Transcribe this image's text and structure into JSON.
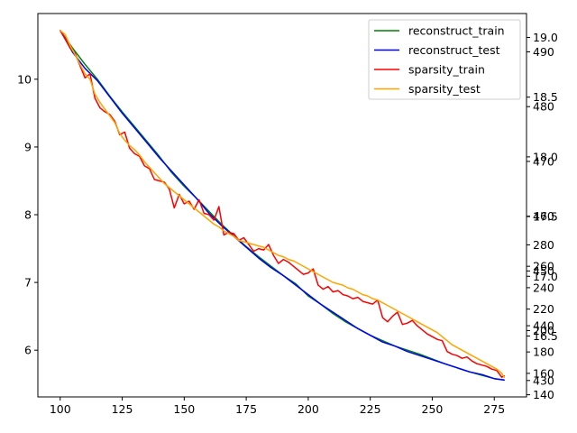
{
  "chart_data": {
    "type": "line",
    "title": "",
    "xlabel": "",
    "ylabel": "",
    "xlim": [
      91,
      288
    ],
    "ylim": [
      5.31,
      10.97
    ],
    "grid": false,
    "legend_position": "top-right",
    "xticks": [
      100,
      125,
      150,
      175,
      200,
      225,
      250,
      275
    ],
    "yticks": [
      6,
      7,
      8,
      9,
      10
    ],
    "right_axes": [
      {
        "name": "axis-a",
        "lim": [
          138.0,
          496.0
        ],
        "ticks": [
          140,
          160,
          180,
          200,
          220,
          240,
          260,
          280
        ]
      },
      {
        "name": "axis-b",
        "lim": [
          15.99,
          19.2
        ],
        "ticks": [
          16.5,
          17.0,
          17.5,
          18.0,
          18.5,
          19.0
        ]
      },
      {
        "name": "axis-c",
        "lim": [
          427.0,
          497.0
        ],
        "ticks": [
          430,
          440,
          450,
          460,
          470,
          480,
          490
        ]
      }
    ],
    "series": [
      {
        "name": "reconstruct_train",
        "color": "#008000",
        "x": [
          100,
          105,
          110,
          115,
          120,
          125,
          130,
          135,
          140,
          145,
          150,
          155,
          160,
          165,
          170,
          175,
          180,
          185,
          190,
          195,
          200,
          205,
          210,
          215,
          220,
          225,
          230,
          235,
          240,
          245,
          250,
          255,
          260,
          265,
          270,
          275,
          279
        ],
        "y": [
          10.72,
          10.46,
          10.22,
          10.0,
          9.75,
          9.52,
          9.3,
          9.08,
          8.86,
          8.62,
          8.42,
          8.24,
          8.05,
          7.86,
          7.69,
          7.53,
          7.38,
          7.24,
          7.1,
          6.98,
          6.8,
          6.68,
          6.54,
          6.42,
          6.32,
          6.22,
          6.14,
          6.06,
          6.0,
          5.94,
          5.87,
          5.8,
          5.74,
          5.68,
          5.63,
          5.58,
          5.56
        ]
      },
      {
        "name": "reconstruct_test",
        "color": "#0000ff",
        "x": [
          100,
          105,
          110,
          115,
          120,
          125,
          130,
          135,
          140,
          145,
          150,
          155,
          160,
          165,
          170,
          175,
          180,
          185,
          190,
          195,
          200,
          205,
          210,
          215,
          220,
          225,
          230,
          235,
          240,
          245,
          250,
          255,
          260,
          265,
          270,
          275,
          279
        ],
        "y": [
          10.72,
          10.4,
          10.16,
          9.98,
          9.74,
          9.5,
          9.28,
          9.06,
          8.84,
          8.64,
          8.44,
          8.24,
          8.02,
          7.84,
          7.68,
          7.52,
          7.36,
          7.22,
          7.1,
          6.96,
          6.82,
          6.68,
          6.56,
          6.44,
          6.32,
          6.22,
          6.12,
          6.06,
          5.98,
          5.92,
          5.86,
          5.8,
          5.74,
          5.68,
          5.64,
          5.58,
          5.56
        ]
      },
      {
        "name": "sparsity_train",
        "color": "#ff0000",
        "x": [
          100,
          102,
          104,
          106,
          108,
          110,
          112,
          114,
          116,
          118,
          120,
          122,
          124,
          126,
          128,
          130,
          132,
          134,
          136,
          138,
          140,
          142,
          144,
          146,
          148,
          150,
          152,
          154,
          156,
          158,
          160,
          162,
          164,
          166,
          168,
          170,
          172,
          174,
          176,
          178,
          180,
          182,
          184,
          186,
          188,
          190,
          192,
          194,
          196,
          198,
          200,
          202,
          204,
          206,
          208,
          210,
          212,
          214,
          216,
          218,
          220,
          222,
          224,
          226,
          228,
          230,
          232,
          234,
          236,
          238,
          240,
          242,
          244,
          246,
          248,
          250,
          252,
          254,
          256,
          258,
          260,
          262,
          264,
          266,
          268,
          270,
          272,
          274,
          276,
          278,
          279
        ],
        "y": [
          10.72,
          10.6,
          10.46,
          10.38,
          10.2,
          10.02,
          10.08,
          9.72,
          9.58,
          9.52,
          9.48,
          9.38,
          9.18,
          9.22,
          8.98,
          8.9,
          8.86,
          8.72,
          8.68,
          8.52,
          8.5,
          8.48,
          8.38,
          8.1,
          8.3,
          8.16,
          8.2,
          8.08,
          8.22,
          8.02,
          8.0,
          7.92,
          8.12,
          7.7,
          7.74,
          7.72,
          7.62,
          7.66,
          7.56,
          7.46,
          7.5,
          7.48,
          7.56,
          7.4,
          7.28,
          7.34,
          7.3,
          7.24,
          7.18,
          7.12,
          7.14,
          7.2,
          6.96,
          6.9,
          6.94,
          6.86,
          6.88,
          6.82,
          6.8,
          6.76,
          6.78,
          6.72,
          6.7,
          6.68,
          6.74,
          6.48,
          6.42,
          6.5,
          6.56,
          6.38,
          6.4,
          6.44,
          6.36,
          6.3,
          6.24,
          6.2,
          6.16,
          6.14,
          5.98,
          5.94,
          5.92,
          5.88,
          5.9,
          5.84,
          5.8,
          5.78,
          5.76,
          5.72,
          5.7,
          5.6,
          5.62
        ]
      },
      {
        "name": "sparsity_test",
        "color": "#ffa500",
        "x": [
          100,
          102,
          104,
          106,
          108,
          110,
          112,
          114,
          116,
          118,
          120,
          122,
          124,
          126,
          128,
          130,
          132,
          134,
          136,
          138,
          140,
          142,
          144,
          146,
          148,
          150,
          152,
          154,
          156,
          158,
          160,
          162,
          164,
          166,
          168,
          170,
          172,
          174,
          176,
          178,
          180,
          182,
          184,
          186,
          188,
          190,
          192,
          194,
          196,
          198,
          200,
          202,
          204,
          206,
          208,
          210,
          212,
          214,
          216,
          218,
          220,
          222,
          224,
          226,
          228,
          230,
          232,
          234,
          236,
          238,
          240,
          242,
          244,
          246,
          248,
          250,
          252,
          254,
          256,
          258,
          260,
          262,
          264,
          266,
          268,
          270,
          272,
          274,
          276,
          278,
          279
        ],
        "y": [
          10.72,
          10.66,
          10.5,
          10.36,
          10.22,
          10.08,
          10.0,
          9.78,
          9.66,
          9.56,
          9.46,
          9.36,
          9.2,
          9.1,
          9.02,
          8.96,
          8.88,
          8.78,
          8.7,
          8.62,
          8.54,
          8.46,
          8.4,
          8.34,
          8.28,
          8.22,
          8.16,
          8.1,
          8.04,
          7.98,
          7.92,
          7.86,
          7.82,
          7.76,
          7.72,
          7.68,
          7.62,
          7.6,
          7.58,
          7.56,
          7.54,
          7.52,
          7.48,
          7.44,
          7.4,
          7.38,
          7.34,
          7.32,
          7.28,
          7.24,
          7.2,
          7.16,
          7.12,
          7.08,
          7.04,
          7.0,
          6.98,
          6.96,
          6.92,
          6.9,
          6.86,
          6.82,
          6.8,
          6.76,
          6.74,
          6.7,
          6.66,
          6.62,
          6.58,
          6.54,
          6.5,
          6.46,
          6.42,
          6.38,
          6.34,
          6.3,
          6.26,
          6.2,
          6.14,
          6.08,
          6.04,
          6.0,
          5.96,
          5.92,
          5.88,
          5.84,
          5.8,
          5.76,
          5.72,
          5.66,
          5.6
        ]
      }
    ]
  }
}
